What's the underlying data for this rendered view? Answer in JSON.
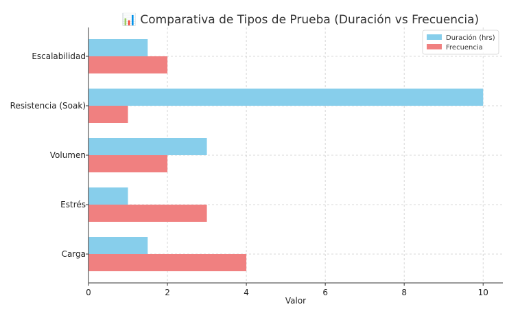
{
  "chart_data": {
    "type": "bar",
    "orientation": "horizontal",
    "title": "📊 Comparativa de Tipos de Prueba (Duración vs Frecuencia)",
    "xlabel": "Valor",
    "ylabel": "",
    "categories": [
      "Carga",
      "Estrés",
      "Volumen",
      "Resistencia (Soak)",
      "Escalabilidad"
    ],
    "series": [
      {
        "name": "Duración (hrs)",
        "values": [
          1.5,
          1,
          3,
          10,
          1.5
        ],
        "color": "#87CEEB"
      },
      {
        "name": "Frecuencia",
        "values": [
          4,
          3,
          2,
          1,
          2
        ],
        "color": "#F08080"
      }
    ],
    "xlim": [
      0,
      10.5
    ],
    "xticks": [
      "0",
      "2",
      "4",
      "6",
      "8",
      "10"
    ],
    "grid": true,
    "legend_position": "top-right"
  }
}
